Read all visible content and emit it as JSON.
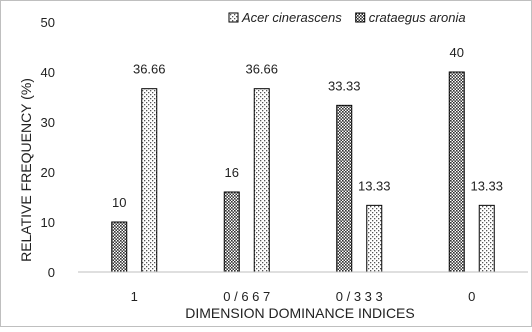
{
  "chart_data": {
    "type": "bar",
    "categories": [
      "1",
      "0 / 6 6 7",
      "0 / 3 3 3",
      "0"
    ],
    "series": [
      {
        "name": "crataegus aronia",
        "legend_label": "crataegus aronia",
        "values": [
          10,
          16,
          33.33,
          40
        ],
        "data_labels": [
          "10",
          "16",
          "33.33",
          "40"
        ],
        "pattern": "dots-dense"
      },
      {
        "name": "Acer cinerascens",
        "legend_label": "Acer cinerascens",
        "values": [
          36.66,
          36.66,
          13.33,
          13.33
        ],
        "data_labels": [
          "36.66",
          "36.66",
          "13.33",
          "13.33"
        ],
        "pattern": "dots-sparse"
      }
    ],
    "legend_order": [
      1,
      0
    ],
    "xlabel": "DIMENSION DOMINANCE INDICES",
    "ylabel": "RELATIVE FREQUENCY (%)",
    "ylim": [
      0,
      50
    ],
    "yticks": [
      0,
      10,
      20,
      30,
      40,
      50
    ],
    "grid": false,
    "legend_position": "top-right"
  }
}
